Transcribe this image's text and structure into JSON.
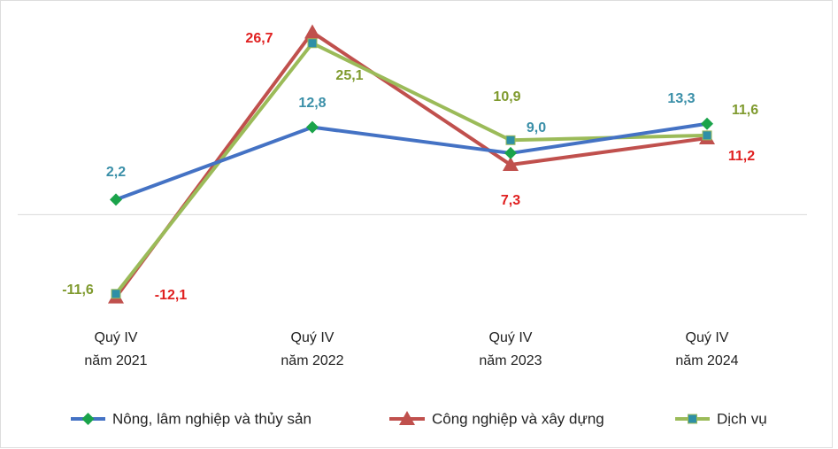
{
  "chart_data": {
    "type": "line",
    "categories": [
      [
        "Quý IV",
        "năm 2021"
      ],
      [
        "Quý IV",
        "năm 2022"
      ],
      [
        "Quý IV",
        "năm 2023"
      ],
      [
        "Quý IV",
        "năm 2024"
      ]
    ],
    "ylim": [
      -15,
      30
    ],
    "series": [
      {
        "name": "Nông, lâm nghiệp và thủy sản",
        "color": "#4472c4",
        "marker": "diamond",
        "marker_color": "#1aa34a",
        "label_color": "#3a8fa8",
        "values": [
          2.2,
          12.8,
          9.0,
          13.3
        ],
        "value_labels": [
          "2,2",
          "12,8",
          "9,0",
          "13,3"
        ]
      },
      {
        "name": "Công nghiệp và xây dựng",
        "color": "#c0504d",
        "marker": "triangle",
        "marker_color": "#c0504d",
        "label_color": "#e02020",
        "values": [
          -12.1,
          26.7,
          7.3,
          11.2
        ],
        "value_labels": [
          "-12,1",
          "26,7",
          "7,3",
          "11,2"
        ]
      },
      {
        "name": "Dịch vụ",
        "color": "#9bbb59",
        "marker": "square",
        "marker_color": "#2e8fa6",
        "label_color": "#7f9a2e",
        "values": [
          -11.6,
          25.1,
          10.9,
          11.6
        ],
        "value_labels": [
          "-11,6",
          "25,1",
          "10,9",
          "11,6"
        ]
      }
    ]
  }
}
